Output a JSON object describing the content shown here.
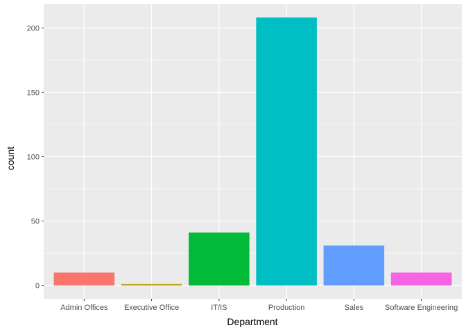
{
  "chart_data": {
    "type": "bar",
    "xlabel": "Department",
    "ylabel": "count",
    "categories": [
      "Admin Offices",
      "Executive Office",
      "IT/IS",
      "Production",
      "Sales",
      "Software Engineering"
    ],
    "values": [
      10,
      1,
      41,
      208,
      31,
      10
    ],
    "colors": [
      "#F8766D",
      "#B79F00",
      "#00BA38",
      "#00BFC4",
      "#619CFF",
      "#F564E3"
    ],
    "yticks": [
      0,
      50,
      100,
      150,
      200
    ],
    "ylim": [
      -10.4,
      218.4
    ],
    "grid": true,
    "panel_background": "#EBEBEB",
    "gridline_color": "#FFFFFF"
  }
}
